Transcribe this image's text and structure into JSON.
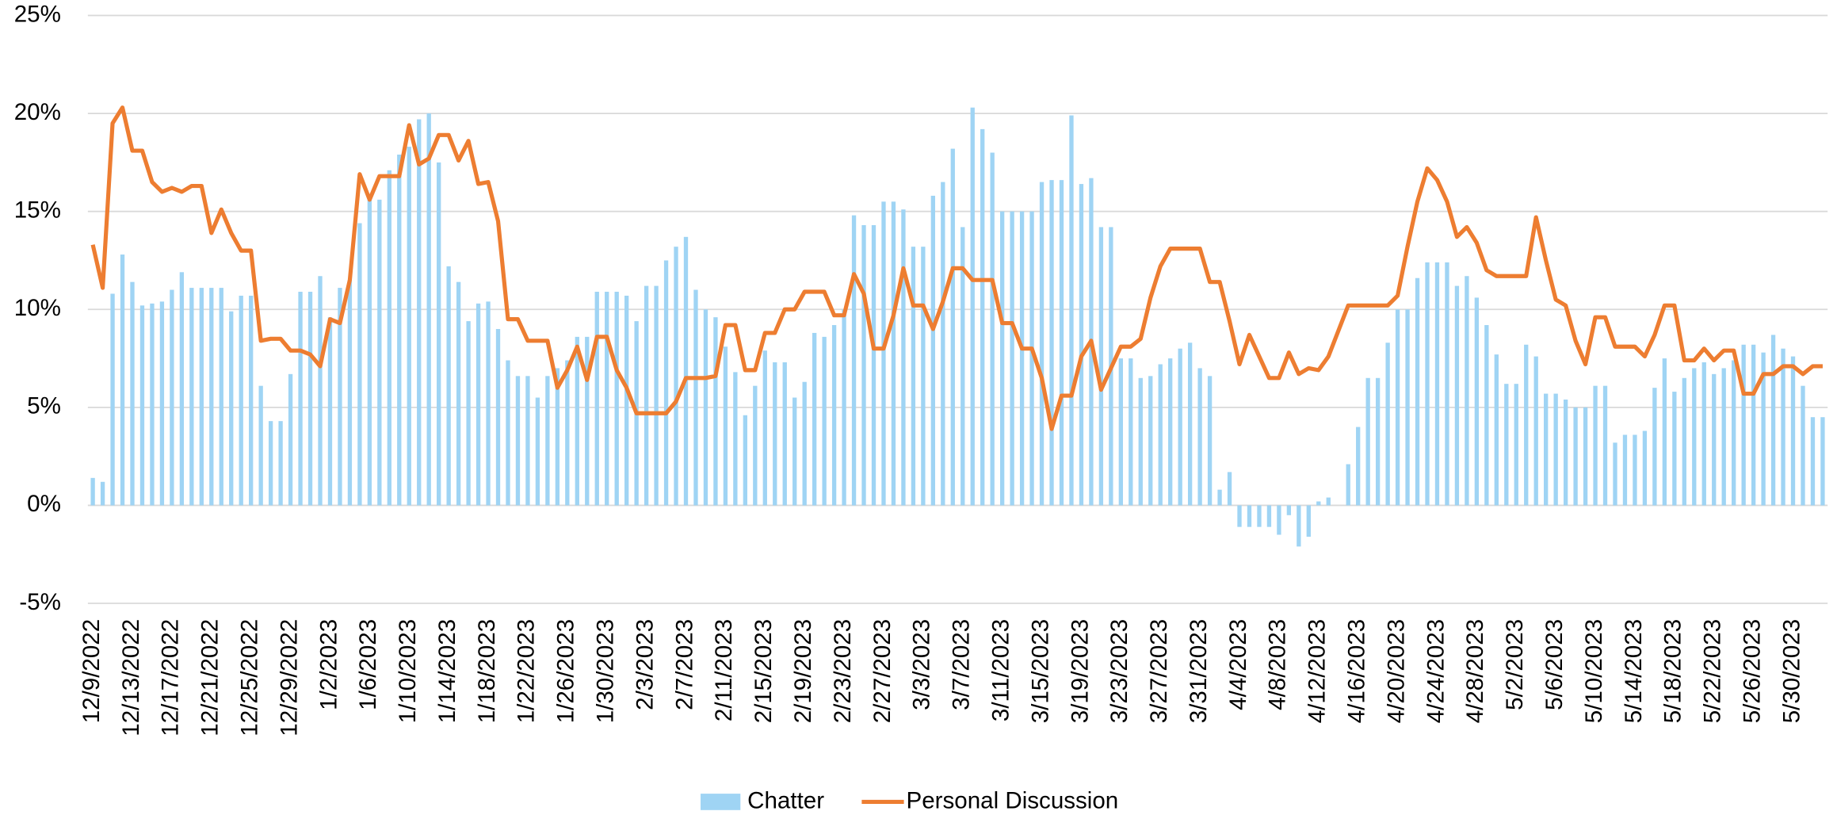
{
  "chart_data": {
    "type": "bar_line",
    "categories": [
      "12/9/2022",
      null,
      null,
      null,
      "12/13/2022",
      null,
      null,
      null,
      "12/17/2022",
      null,
      null,
      null,
      "12/21/2022",
      null,
      null,
      null,
      "12/25/2022",
      null,
      null,
      null,
      "12/29/2022",
      null,
      null,
      null,
      "1/2/2023",
      null,
      null,
      null,
      "1/6/2023",
      null,
      null,
      null,
      "1/10/2023",
      null,
      null,
      null,
      "1/14/2023",
      null,
      null,
      null,
      "1/18/2023",
      null,
      null,
      null,
      "1/22/2023",
      null,
      null,
      null,
      "1/26/2023",
      null,
      null,
      null,
      "1/30/2023",
      null,
      null,
      null,
      "2/3/2023",
      null,
      null,
      null,
      "2/7/2023",
      null,
      null,
      null,
      "2/11/2023",
      null,
      null,
      null,
      "2/15/2023",
      null,
      null,
      null,
      "2/19/2023",
      null,
      null,
      null,
      "2/23/2023",
      null,
      null,
      null,
      "2/27/2023",
      null,
      null,
      null,
      "3/3/2023",
      null,
      null,
      null,
      "3/7/2023",
      null,
      null,
      null,
      "3/11/2023",
      null,
      null,
      null,
      "3/15/2023",
      null,
      null,
      null,
      "3/19/2023",
      null,
      null,
      null,
      "3/23/2023",
      null,
      null,
      null,
      "3/27/2023",
      null,
      null,
      null,
      "3/31/2023",
      null,
      null,
      null,
      "4/4/2023",
      null,
      null,
      null,
      "4/8/2023",
      null,
      null,
      null,
      "4/12/2023",
      null,
      null,
      null,
      "4/16/2023",
      null,
      null,
      null,
      "4/20/2023",
      null,
      null,
      null,
      "4/24/2023",
      null,
      null,
      null,
      "4/28/2023",
      null,
      null,
      null,
      "5/2/2023",
      null,
      null,
      null,
      "5/6/2023",
      null,
      null,
      null,
      "5/10/2023",
      null,
      null,
      null,
      "5/14/2023",
      null,
      null,
      null,
      "5/18/2023",
      null,
      null,
      null,
      "5/22/2023",
      null,
      null,
      null,
      "5/26/2023",
      null,
      null,
      null,
      "5/30/2023",
      null,
      null,
      null
    ],
    "series": [
      {
        "name": "Chatter",
        "type": "bar",
        "color": "#9fd4f4",
        "values": [
          1.4,
          1.2,
          10.8,
          12.8,
          11.4,
          10.2,
          10.3,
          10.4,
          11.0,
          11.9,
          11.1,
          11.1,
          11.1,
          11.1,
          9.9,
          10.7,
          10.7,
          6.1,
          4.3,
          4.3,
          6.7,
          10.9,
          10.9,
          11.7,
          9.6,
          11.1,
          11.5,
          14.4,
          15.6,
          15.6,
          17.1,
          17.9,
          18.3,
          19.7,
          20.0,
          17.5,
          12.2,
          11.4,
          9.4,
          10.3,
          10.4,
          9.0,
          7.4,
          6.6,
          6.6,
          5.5,
          6.6,
          7.0,
          7.4,
          8.6,
          8.6,
          10.9,
          10.9,
          10.9,
          10.7,
          9.4,
          11.2,
          11.2,
          12.5,
          13.2,
          13.7,
          11.0,
          10.0,
          9.6,
          8.1,
          6.8,
          4.6,
          6.1,
          7.9,
          7.3,
          7.3,
          5.5,
          6.3,
          8.8,
          8.6,
          9.2,
          10.0,
          14.8,
          14.3,
          14.3,
          15.5,
          15.5,
          15.1,
          13.2,
          13.2,
          15.8,
          16.5,
          18.2,
          14.2,
          20.3,
          19.2,
          18.0,
          15.0,
          15.0,
          15.0,
          15.0,
          16.5,
          16.6,
          16.6,
          19.9,
          16.4,
          16.7,
          14.2,
          14.2,
          7.5,
          7.5,
          6.5,
          6.6,
          7.2,
          7.5,
          8.0,
          8.3,
          7.0,
          6.6,
          0.8,
          1.7,
          -1.1,
          -1.1,
          -1.1,
          -1.1,
          -1.5,
          -0.5,
          -2.1,
          -1.6,
          0.2,
          0.4,
          0,
          2.1,
          4.0,
          6.5,
          6.5,
          8.3,
          10.0,
          10.0,
          11.6,
          12.4,
          12.4,
          12.4,
          11.2,
          11.7,
          10.6,
          9.2,
          7.7,
          6.2,
          6.2,
          8.2,
          7.6,
          5.7,
          5.7,
          5.4,
          5.0,
          5.0,
          6.1,
          6.1,
          3.2,
          3.6,
          3.6,
          3.8,
          6.0,
          7.5,
          5.8,
          6.5,
          7.0,
          7.3,
          6.7,
          7.0,
          7.4,
          8.2,
          8.2,
          7.8,
          8.7,
          8.0,
          7.6,
          6.1,
          4.5,
          4.5
        ]
      },
      {
        "name": "Personal Discussion",
        "type": "line",
        "color": "#ed7d31",
        "values": [
          13.3,
          11.1,
          19.5,
          20.3,
          18.1,
          18.1,
          16.5,
          16.0,
          16.2,
          16.0,
          16.3,
          16.3,
          13.9,
          15.1,
          13.9,
          13.0,
          13.0,
          8.4,
          8.5,
          8.5,
          7.9,
          7.9,
          7.7,
          7.1,
          9.5,
          9.3,
          11.5,
          16.9,
          15.6,
          16.8,
          16.8,
          16.8,
          19.4,
          17.4,
          17.7,
          18.9,
          18.9,
          17.6,
          18.6,
          16.4,
          16.5,
          14.5,
          9.5,
          9.5,
          8.4,
          8.4,
          8.4,
          6.0,
          6.9,
          8.1,
          6.4,
          8.6,
          8.6,
          6.9,
          6.0,
          4.7,
          4.7,
          4.7,
          4.7,
          5.3,
          6.5,
          6.5,
          6.5,
          6.6,
          9.2,
          9.2,
          6.9,
          6.9,
          8.8,
          8.8,
          10.0,
          10.0,
          10.9,
          10.9,
          10.9,
          9.7,
          9.7,
          11.8,
          10.8,
          8.0,
          8.0,
          9.7,
          12.1,
          10.2,
          10.2,
          9.0,
          10.4,
          12.1,
          12.1,
          11.5,
          11.5,
          11.5,
          9.3,
          9.3,
          8.0,
          8.0,
          6.5,
          3.9,
          5.6,
          5.6,
          7.6,
          8.4,
          5.9,
          7.0,
          8.1,
          8.1,
          8.5,
          10.6,
          12.2,
          13.1,
          13.1,
          13.1,
          13.1,
          11.4,
          11.4,
          9.4,
          7.2,
          8.7,
          7.6,
          6.5,
          6.5,
          7.8,
          6.7,
          7.0,
          6.9,
          7.6,
          8.9,
          10.2,
          10.2,
          10.2,
          10.2,
          10.2,
          10.7,
          13.2,
          15.5,
          17.2,
          16.6,
          15.5,
          13.7,
          14.2,
          13.4,
          12.0,
          11.7,
          11.7,
          11.7,
          11.7,
          14.7,
          12.5,
          10.5,
          10.2,
          8.4,
          7.2,
          9.6,
          9.6,
          8.1,
          8.1,
          8.1,
          7.6,
          8.7,
          10.2,
          10.2,
          7.4,
          7.4,
          8.0,
          7.4,
          7.9,
          7.9,
          5.7,
          5.7,
          6.7,
          6.7,
          7.1,
          7.1,
          6.7,
          7.1,
          7.1
        ]
      }
    ],
    "ylim": [
      -5,
      25
    ],
    "yticks": [
      {
        "value": -5,
        "label": "-5%"
      },
      {
        "value": 0,
        "label": "0%"
      },
      {
        "value": 5,
        "label": "5%"
      },
      {
        "value": 10,
        "label": "10%"
      },
      {
        "value": 15,
        "label": "15%"
      },
      {
        "value": 20,
        "label": "20%"
      },
      {
        "value": 25,
        "label": "25%"
      }
    ],
    "grid": true,
    "legend": "bottom"
  }
}
